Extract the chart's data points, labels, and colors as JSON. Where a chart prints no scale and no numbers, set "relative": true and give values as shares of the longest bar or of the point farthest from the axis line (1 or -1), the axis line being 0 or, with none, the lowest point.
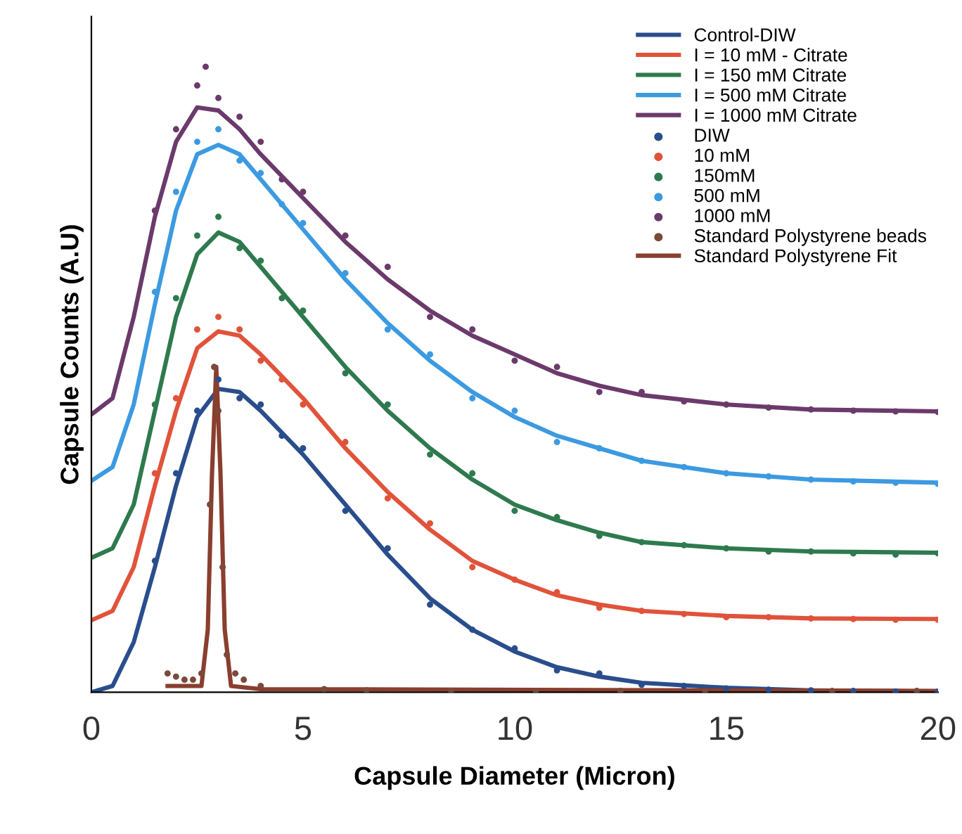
{
  "chart_data": {
    "type": "line",
    "relative": true,
    "xlabel": "Capsule Diameter (Micron)",
    "ylabel": "Capsule Counts (A.U)",
    "xlim": [
      0,
      20
    ],
    "xticks": [
      0,
      5,
      10,
      15,
      20
    ],
    "legend": "top right",
    "grid": false,
    "tick_labels": "x",
    "series": [
      {
        "name": "Control-DIW",
        "color": "#2a4e8c",
        "x": [
          0,
          0.5,
          1,
          1.5,
          2,
          2.5,
          3,
          3.5,
          4,
          5,
          6,
          7,
          8,
          9,
          10,
          11,
          12,
          13,
          15,
          17,
          20
        ],
        "values": [
          0,
          0.01,
          0.08,
          0.2,
          0.33,
          0.44,
          0.485,
          0.48,
          0.45,
          0.38,
          0.3,
          0.22,
          0.15,
          0.1,
          0.065,
          0.04,
          0.025,
          0.015,
          0.007,
          0.003,
          0.001
        ]
      },
      {
        "name": "I = 10 mM - Citrate",
        "color": "#e0533a",
        "x": [
          0,
          0.5,
          1,
          1.5,
          2,
          2.5,
          3,
          3.5,
          4,
          5,
          6,
          7,
          8,
          9,
          10,
          11,
          12,
          13,
          15,
          17,
          20
        ],
        "values": [
          0.115,
          0.13,
          0.2,
          0.33,
          0.45,
          0.55,
          0.577,
          0.57,
          0.54,
          0.47,
          0.39,
          0.32,
          0.26,
          0.21,
          0.18,
          0.155,
          0.14,
          0.13,
          0.122,
          0.118,
          0.117
        ]
      },
      {
        "name": "I = 150 mM Citrate",
        "color": "#2e7a4e",
        "x": [
          0,
          0.5,
          1,
          1.5,
          2,
          2.5,
          3,
          3.5,
          4,
          5,
          6,
          7,
          8,
          9,
          10,
          11,
          12,
          13,
          15,
          17,
          20
        ],
        "values": [
          0.215,
          0.23,
          0.3,
          0.45,
          0.6,
          0.7,
          0.735,
          0.72,
          0.68,
          0.6,
          0.52,
          0.45,
          0.39,
          0.34,
          0.3,
          0.275,
          0.255,
          0.24,
          0.23,
          0.225,
          0.223
        ]
      },
      {
        "name": "I = 500 mM Citrate",
        "color": "#3c9ae0",
        "x": [
          0,
          0.5,
          1,
          1.5,
          2,
          2.5,
          3,
          3.5,
          4,
          5,
          6,
          7,
          8,
          9,
          10,
          11,
          12,
          13,
          15,
          17,
          20
        ],
        "values": [
          0.338,
          0.36,
          0.46,
          0.62,
          0.77,
          0.86,
          0.875,
          0.86,
          0.82,
          0.74,
          0.66,
          0.59,
          0.53,
          0.48,
          0.44,
          0.41,
          0.39,
          0.37,
          0.35,
          0.34,
          0.335
        ]
      },
      {
        "name": "I = 1000 mM Citrate",
        "color": "#6b3a6b",
        "x": [
          0,
          0.5,
          1,
          1.5,
          2,
          2.5,
          3,
          3.5,
          4,
          5,
          6,
          7,
          8,
          9,
          10,
          11,
          12,
          13,
          15,
          17,
          20
        ],
        "values": [
          0.444,
          0.47,
          0.6,
          0.76,
          0.88,
          0.935,
          0.93,
          0.9,
          0.86,
          0.79,
          0.72,
          0.66,
          0.61,
          0.57,
          0.54,
          0.51,
          0.49,
          0.475,
          0.46,
          0.452,
          0.449
        ]
      },
      {
        "name": "DIW",
        "type": "scatter",
        "color": "#2a4e8c",
        "x": [
          1.5,
          2,
          2.5,
          3,
          3.5,
          4,
          4.5,
          5,
          6,
          7,
          8,
          9,
          10,
          11,
          12,
          13,
          14,
          15,
          16,
          17,
          18,
          19,
          20
        ],
        "values": [
          0.21,
          0.35,
          0.45,
          0.5,
          0.47,
          0.46,
          0.41,
          0.39,
          0.29,
          0.23,
          0.14,
          0.1,
          0.07,
          0.035,
          0.03,
          0.012,
          0.01,
          0.006,
          0.004,
          0.003,
          0.002,
          0.001,
          0.001
        ]
      },
      {
        "name": "10 mM",
        "type": "scatter",
        "color": "#e0533a",
        "x": [
          1.5,
          2,
          2.5,
          3,
          3.5,
          4,
          4.5,
          5,
          6,
          7,
          8,
          9,
          10,
          11,
          12,
          13,
          14,
          15,
          16,
          17,
          18,
          19,
          20
        ],
        "values": [
          0.35,
          0.47,
          0.58,
          0.6,
          0.58,
          0.53,
          0.5,
          0.46,
          0.4,
          0.31,
          0.27,
          0.2,
          0.18,
          0.16,
          0.135,
          0.13,
          0.125,
          0.12,
          0.12,
          0.118,
          0.117,
          0.116,
          0.116
        ]
      },
      {
        "name": "150mM",
        "type": "scatter",
        "color": "#2e7a4e",
        "x": [
          1.5,
          2,
          2.5,
          3,
          3.5,
          4,
          4.5,
          5,
          6,
          7,
          8,
          9,
          10,
          11,
          12,
          13,
          14,
          15,
          16,
          17,
          18,
          19,
          20
        ],
        "values": [
          0.46,
          0.63,
          0.73,
          0.76,
          0.71,
          0.69,
          0.63,
          0.61,
          0.51,
          0.46,
          0.38,
          0.35,
          0.29,
          0.28,
          0.25,
          0.24,
          0.235,
          0.23,
          0.225,
          0.225,
          0.222,
          0.22,
          0.222
        ]
      },
      {
        "name": "500 mM",
        "type": "scatter",
        "color": "#3c9ae0",
        "x": [
          1.5,
          2,
          2.5,
          3,
          3.5,
          4,
          4.5,
          5,
          6,
          7,
          8,
          9,
          10,
          11,
          12,
          13,
          14,
          15,
          16,
          17,
          18,
          19,
          20
        ],
        "values": [
          0.64,
          0.8,
          0.88,
          0.9,
          0.85,
          0.83,
          0.78,
          0.75,
          0.67,
          0.58,
          0.54,
          0.47,
          0.45,
          0.4,
          0.39,
          0.37,
          0.36,
          0.35,
          0.345,
          0.34,
          0.337,
          0.335,
          0.333
        ]
      },
      {
        "name": "1000 mM",
        "type": "scatter",
        "color": "#6b3a6b",
        "x": [
          1.5,
          2,
          2.5,
          2.7,
          3,
          3.5,
          4,
          4.5,
          5,
          6,
          7,
          8,
          9,
          10,
          11,
          12,
          13,
          14,
          15,
          16,
          17,
          18,
          19,
          20
        ],
        "values": [
          0.77,
          0.9,
          0.97,
          1.0,
          0.95,
          0.92,
          0.88,
          0.82,
          0.8,
          0.73,
          0.68,
          0.6,
          0.58,
          0.53,
          0.52,
          0.48,
          0.48,
          0.465,
          0.46,
          0.455,
          0.452,
          0.45,
          0.449,
          0.448
        ]
      },
      {
        "name": "Standard Polystyrene beads",
        "type": "scatter",
        "color": "#7a4a3a",
        "x": [
          1.8,
          2,
          2.2,
          2.4,
          2.6,
          2.8,
          2.9,
          3,
          3.1,
          3.2,
          3.4,
          3.6,
          4,
          5.5,
          6.5,
          8.5,
          10.5,
          12.5,
          14.5,
          17.5,
          19.5
        ],
        "values": [
          0.03,
          0.025,
          0.02,
          0.02,
          0.03,
          0.3,
          0.52,
          0.45,
          0.2,
          0.06,
          0.03,
          0.02,
          0.01,
          0.005,
          0.003,
          0.002,
          0.002,
          0.002,
          0.002,
          0.002,
          0.002
        ]
      },
      {
        "name": "Standard Polystyrene Fit",
        "color": "#8a3e2e",
        "x": [
          1.8,
          2.6,
          2.75,
          2.85,
          2.95,
          3.05,
          3.15,
          3.3,
          4,
          20
        ],
        "values": [
          0.01,
          0.01,
          0.1,
          0.35,
          0.52,
          0.35,
          0.1,
          0.01,
          0.005,
          0.002
        ]
      }
    ]
  }
}
